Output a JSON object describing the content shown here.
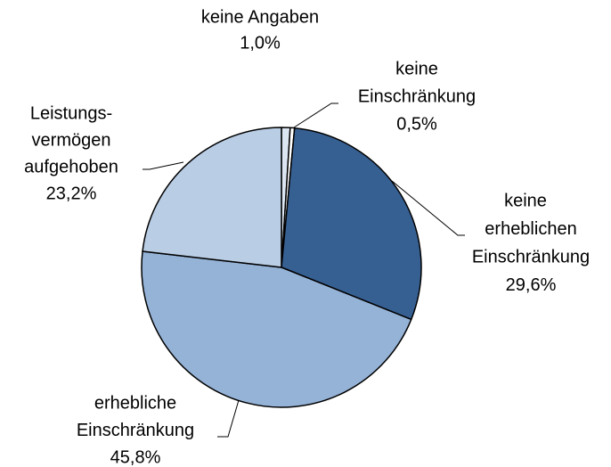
{
  "chart_data": {
    "type": "pie",
    "labels": [
      [
        "keine Angaben"
      ],
      [
        "keine",
        "Einschränkung"
      ],
      [
        "keine",
        "erheblichen",
        "Einschränkung"
      ],
      [
        "erhebliche",
        "Einschränkung"
      ],
      [
        "Leistungs-",
        "vermögen",
        "aufgehoben"
      ]
    ],
    "values": [
      1.0,
      0.5,
      29.6,
      45.8,
      23.2
    ],
    "value_labels": [
      "1,0%",
      "0,5%",
      "29,6%",
      "45,8%",
      "23,2%"
    ],
    "colors": [
      "#dce6f2",
      "#ffffff",
      "#376092",
      "#95b3d7",
      "#b9cde5"
    ]
  }
}
